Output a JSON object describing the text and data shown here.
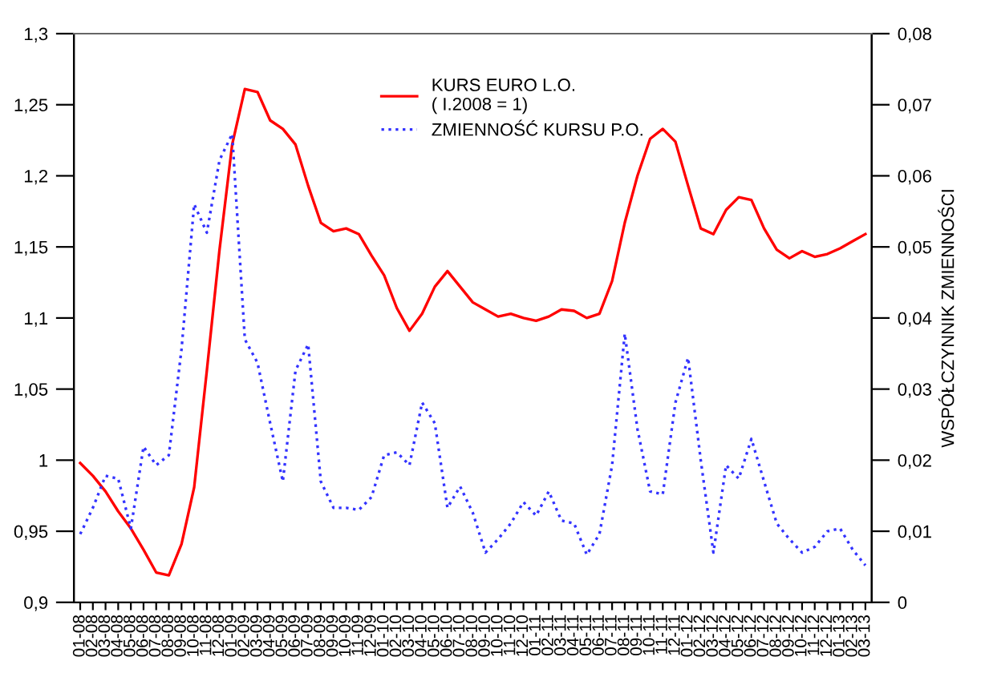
{
  "chart_data": {
    "type": "line",
    "y2label": "WSPÓŁCZYNNIK ZMIENNOŚCI",
    "categories": [
      "01-08",
      "02-08",
      "03-08",
      "04-08",
      "05-08",
      "06-08",
      "07-08",
      "08-08",
      "09-08",
      "10-08",
      "11-08",
      "12-08",
      "01-09",
      "02-09",
      "03-09",
      "04-09",
      "05-09",
      "06-09",
      "07-09",
      "08-09",
      "09-09",
      "10-09",
      "11-09",
      "12-09",
      "01-10",
      "02-10",
      "03-10",
      "04-10",
      "05-10",
      "06-10",
      "07-10",
      "08-10",
      "09-10",
      "10-10",
      "11-10",
      "12-10",
      "01-11",
      "02-11",
      "03-11",
      "04-11",
      "05-11",
      "06-11",
      "07-11",
      "08-11",
      "09-11",
      "10-11",
      "11-11",
      "12-11",
      "01-12",
      "02-12",
      "03-12",
      "04-12",
      "05-12",
      "06-12",
      "07-12",
      "08-12",
      "09-12",
      "10-12",
      "11-12",
      "12-12",
      "01-13",
      "02-13",
      "03-13"
    ],
    "series": [
      {
        "name": "KURS EURO L.O.\n( I.2008 = 1)",
        "color": "#ff0000",
        "line_style": "solid",
        "values": [
          0.998,
          0.989,
          0.978,
          0.964,
          0.952,
          0.937,
          0.921,
          0.919,
          0.941,
          0.981,
          1.063,
          1.148,
          1.222,
          1.261,
          1.259,
          1.239,
          1.233,
          1.222,
          1.193,
          1.167,
          1.161,
          1.163,
          1.159,
          1.144,
          1.13,
          1.107,
          1.091,
          1.103,
          1.122,
          1.133,
          1.122,
          1.111,
          1.106,
          1.101,
          1.103,
          1.1,
          1.098,
          1.101,
          1.106,
          1.105,
          1.1,
          1.103,
          1.126,
          1.167,
          1.2,
          1.226,
          1.233,
          1.224,
          1.193,
          1.163,
          1.159,
          1.176,
          1.185,
          1.183,
          1.163,
          1.148,
          1.142,
          1.147,
          1.143,
          1.145,
          1.149,
          1.154,
          1.159
        ]
      },
      {
        "name": "ZMIENNOŚĆ KURSU P.O.",
        "color": "#3333ff",
        "line_style": "dotted",
        "axis": "y2",
        "values": [
          0.0096,
          0.0133,
          0.0178,
          0.0174,
          0.0104,
          0.0219,
          0.0193,
          0.0207,
          0.0356,
          0.056,
          0.052,
          0.0622,
          0.0659,
          0.037,
          0.0337,
          0.0252,
          0.017,
          0.0326,
          0.0363,
          0.017,
          0.0133,
          0.0133,
          0.013,
          0.0148,
          0.0207,
          0.0211,
          0.0193,
          0.0281,
          0.0252,
          0.0133,
          0.0163,
          0.0126,
          0.007,
          0.0089,
          0.0111,
          0.0141,
          0.0122,
          0.0156,
          0.0115,
          0.0111,
          0.0067,
          0.0096,
          0.0193,
          0.0378,
          0.0244,
          0.0156,
          0.0152,
          0.0281,
          0.0344,
          0.02,
          0.007,
          0.0193,
          0.0174,
          0.023,
          0.017,
          0.0111,
          0.0089,
          0.007,
          0.0078,
          0.01,
          0.0104,
          0.0074,
          0.0052
        ]
      }
    ],
    "ylim": [
      0.9,
      1.3
    ],
    "yticks": [
      {
        "value": 0.9,
        "label": "0,9"
      },
      {
        "value": 0.95,
        "label": "0,95"
      },
      1,
      {
        "value": 1.05,
        "label": "1,05"
      },
      {
        "value": 1.1,
        "label": "1,1"
      },
      {
        "value": 1.15,
        "label": "1,15"
      },
      {
        "value": 1.2,
        "label": "1,2"
      },
      {
        "value": 1.25,
        "label": "1,25"
      },
      {
        "value": 1.3,
        "label": "1,3"
      }
    ],
    "y2lim": [
      0,
      0.08
    ],
    "y2ticks": [
      0,
      {
        "value": 0.01,
        "label": "0,01"
      },
      {
        "value": 0.02,
        "label": "0,02"
      },
      {
        "value": 0.03,
        "label": "0,03"
      },
      {
        "value": 0.04,
        "label": "0,04"
      },
      {
        "value": 0.05,
        "label": "0,05"
      },
      {
        "value": 0.06,
        "label": "0,06"
      },
      {
        "value": 0.07,
        "label": "0,07"
      },
      {
        "value": 0.08,
        "label": "0,08"
      }
    ],
    "grid": false,
    "legend": "top"
  }
}
